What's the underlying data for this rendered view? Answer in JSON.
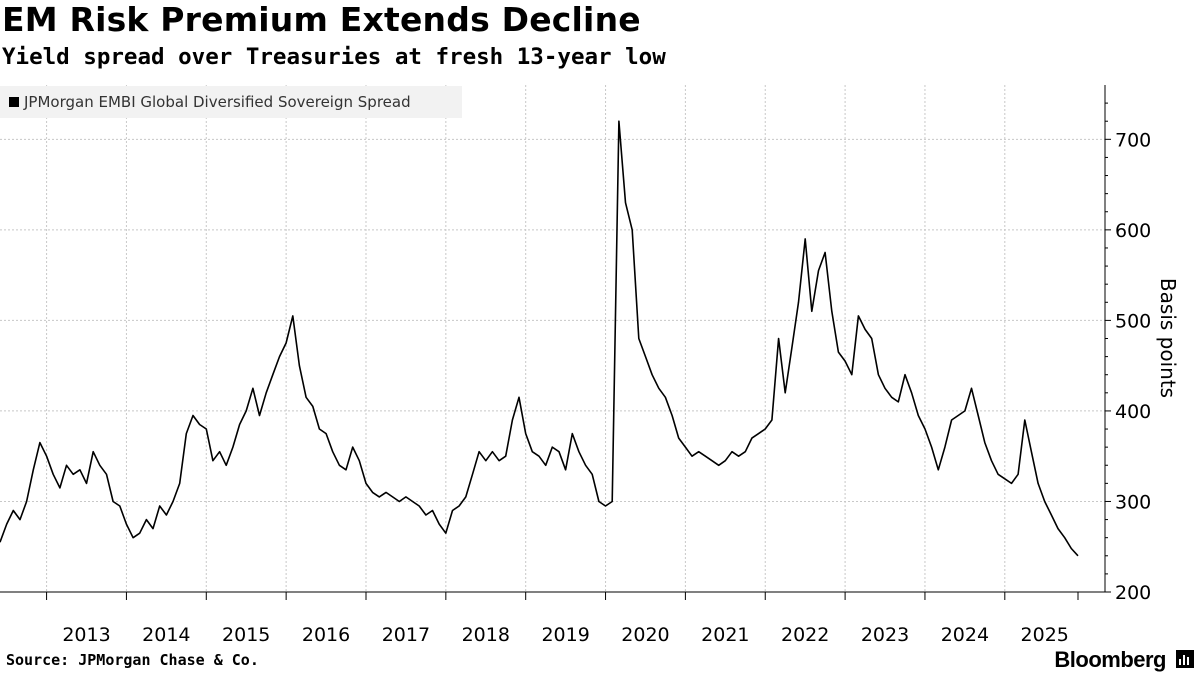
{
  "header": {
    "title": "EM Risk Premium Extends Decline",
    "subtitle": "Yield spread over Treasuries at fresh 13-year low"
  },
  "legend": {
    "label": "JPMorgan EMBI Global Diversified Sovereign Spread"
  },
  "footer": {
    "source": "Source: JPMorgan Chase & Co.",
    "brand": "Bloomberg",
    "brand_icon": "bloomberg-terminal-icon"
  },
  "chart_data": {
    "type": "line",
    "title": "EM Risk Premium Extends Decline",
    "subtitle": "Yield spread over Treasuries at fresh 13-year low",
    "ylabel": "Basis points",
    "xlabel": "",
    "x_range": [
      "2012-06",
      "2025-12"
    ],
    "ylim": [
      200,
      760
    ],
    "y_ticks": [
      200,
      300,
      400,
      500,
      600,
      700
    ],
    "x_tick_labels": [
      "2013",
      "2014",
      "2015",
      "2016",
      "2017",
      "2018",
      "2019",
      "2020",
      "2021",
      "2022",
      "2023",
      "2024",
      "2025"
    ],
    "grid": true,
    "legend_position": "top-left",
    "line_color": "#000000",
    "series": [
      {
        "name": "JPMorgan EMBI Global Diversified Sovereign Spread",
        "points": [
          [
            "2012-06",
            255
          ],
          [
            "2012-07",
            275
          ],
          [
            "2012-08",
            290
          ],
          [
            "2012-09",
            280
          ],
          [
            "2012-10",
            300
          ],
          [
            "2012-11",
            335
          ],
          [
            "2012-12",
            365
          ],
          [
            "2013-01",
            350
          ],
          [
            "2013-02",
            330
          ],
          [
            "2013-03",
            315
          ],
          [
            "2013-04",
            340
          ],
          [
            "2013-05",
            330
          ],
          [
            "2013-06",
            335
          ],
          [
            "2013-07",
            320
          ],
          [
            "2013-08",
            355
          ],
          [
            "2013-09",
            340
          ],
          [
            "2013-10",
            330
          ],
          [
            "2013-11",
            300
          ],
          [
            "2013-12",
            295
          ],
          [
            "2014-01",
            275
          ],
          [
            "2014-02",
            260
          ],
          [
            "2014-03",
            265
          ],
          [
            "2014-04",
            280
          ],
          [
            "2014-05",
            270
          ],
          [
            "2014-06",
            295
          ],
          [
            "2014-07",
            285
          ],
          [
            "2014-08",
            300
          ],
          [
            "2014-09",
            320
          ],
          [
            "2014-10",
            375
          ],
          [
            "2014-11",
            395
          ],
          [
            "2014-12",
            385
          ],
          [
            "2015-01",
            380
          ],
          [
            "2015-02",
            345
          ],
          [
            "2015-03",
            355
          ],
          [
            "2015-04",
            340
          ],
          [
            "2015-05",
            360
          ],
          [
            "2015-06",
            385
          ],
          [
            "2015-07",
            400
          ],
          [
            "2015-08",
            425
          ],
          [
            "2015-09",
            395
          ],
          [
            "2015-10",
            420
          ],
          [
            "2015-11",
            440
          ],
          [
            "2015-12",
            460
          ],
          [
            "2016-01",
            475
          ],
          [
            "2016-02",
            505
          ],
          [
            "2016-03",
            450
          ],
          [
            "2016-04",
            415
          ],
          [
            "2016-05",
            405
          ],
          [
            "2016-06",
            380
          ],
          [
            "2016-07",
            375
          ],
          [
            "2016-08",
            355
          ],
          [
            "2016-09",
            340
          ],
          [
            "2016-10",
            335
          ],
          [
            "2016-11",
            360
          ],
          [
            "2016-12",
            345
          ],
          [
            "2017-01",
            320
          ],
          [
            "2017-02",
            310
          ],
          [
            "2017-03",
            305
          ],
          [
            "2017-04",
            310
          ],
          [
            "2017-05",
            305
          ],
          [
            "2017-06",
            300
          ],
          [
            "2017-07",
            305
          ],
          [
            "2017-08",
            300
          ],
          [
            "2017-09",
            295
          ],
          [
            "2017-10",
            285
          ],
          [
            "2017-11",
            290
          ],
          [
            "2017-12",
            275
          ],
          [
            "2018-01",
            265
          ],
          [
            "2018-02",
            290
          ],
          [
            "2018-03",
            295
          ],
          [
            "2018-04",
            305
          ],
          [
            "2018-05",
            330
          ],
          [
            "2018-06",
            355
          ],
          [
            "2018-07",
            345
          ],
          [
            "2018-08",
            355
          ],
          [
            "2018-09",
            345
          ],
          [
            "2018-10",
            350
          ],
          [
            "2018-11",
            390
          ],
          [
            "2018-12",
            415
          ],
          [
            "2019-01",
            375
          ],
          [
            "2019-02",
            355
          ],
          [
            "2019-03",
            350
          ],
          [
            "2019-04",
            340
          ],
          [
            "2019-05",
            360
          ],
          [
            "2019-06",
            355
          ],
          [
            "2019-07",
            335
          ],
          [
            "2019-08",
            375
          ],
          [
            "2019-09",
            355
          ],
          [
            "2019-10",
            340
          ],
          [
            "2019-11",
            330
          ],
          [
            "2019-12",
            300
          ],
          [
            "2020-01",
            295
          ],
          [
            "2020-02",
            300
          ],
          [
            "2020-03",
            720
          ],
          [
            "2020-04",
            630
          ],
          [
            "2020-05",
            600
          ],
          [
            "2020-06",
            480
          ],
          [
            "2020-07",
            460
          ],
          [
            "2020-08",
            440
          ],
          [
            "2020-09",
            425
          ],
          [
            "2020-10",
            415
          ],
          [
            "2020-11",
            395
          ],
          [
            "2020-12",
            370
          ],
          [
            "2021-01",
            360
          ],
          [
            "2021-02",
            350
          ],
          [
            "2021-03",
            355
          ],
          [
            "2021-04",
            350
          ],
          [
            "2021-05",
            345
          ],
          [
            "2021-06",
            340
          ],
          [
            "2021-07",
            345
          ],
          [
            "2021-08",
            355
          ],
          [
            "2021-09",
            350
          ],
          [
            "2021-10",
            355
          ],
          [
            "2021-11",
            370
          ],
          [
            "2021-12",
            375
          ],
          [
            "2022-01",
            380
          ],
          [
            "2022-02",
            390
          ],
          [
            "2022-03",
            480
          ],
          [
            "2022-04",
            420
          ],
          [
            "2022-05",
            470
          ],
          [
            "2022-06",
            520
          ],
          [
            "2022-07",
            590
          ],
          [
            "2022-08",
            510
          ],
          [
            "2022-09",
            555
          ],
          [
            "2022-10",
            575
          ],
          [
            "2022-11",
            510
          ],
          [
            "2022-12",
            465
          ],
          [
            "2023-01",
            455
          ],
          [
            "2023-02",
            440
          ],
          [
            "2023-03",
            505
          ],
          [
            "2023-04",
            490
          ],
          [
            "2023-05",
            480
          ],
          [
            "2023-06",
            440
          ],
          [
            "2023-07",
            425
          ],
          [
            "2023-08",
            415
          ],
          [
            "2023-09",
            410
          ],
          [
            "2023-10",
            440
          ],
          [
            "2023-11",
            420
          ],
          [
            "2023-12",
            395
          ],
          [
            "2024-01",
            380
          ],
          [
            "2024-02",
            360
          ],
          [
            "2024-03",
            335
          ],
          [
            "2024-04",
            360
          ],
          [
            "2024-05",
            390
          ],
          [
            "2024-06",
            395
          ],
          [
            "2024-07",
            400
          ],
          [
            "2024-08",
            425
          ],
          [
            "2024-09",
            395
          ],
          [
            "2024-10",
            365
          ],
          [
            "2024-11",
            345
          ],
          [
            "2024-12",
            330
          ],
          [
            "2025-01",
            325
          ],
          [
            "2025-02",
            320
          ],
          [
            "2025-03",
            330
          ],
          [
            "2025-04",
            390
          ],
          [
            "2025-05",
            355
          ],
          [
            "2025-06",
            320
          ],
          [
            "2025-07",
            300
          ],
          [
            "2025-08",
            285
          ],
          [
            "2025-09",
            270
          ],
          [
            "2025-10",
            260
          ],
          [
            "2025-11",
            248
          ],
          [
            "2025-12",
            240
          ]
        ]
      }
    ]
  }
}
